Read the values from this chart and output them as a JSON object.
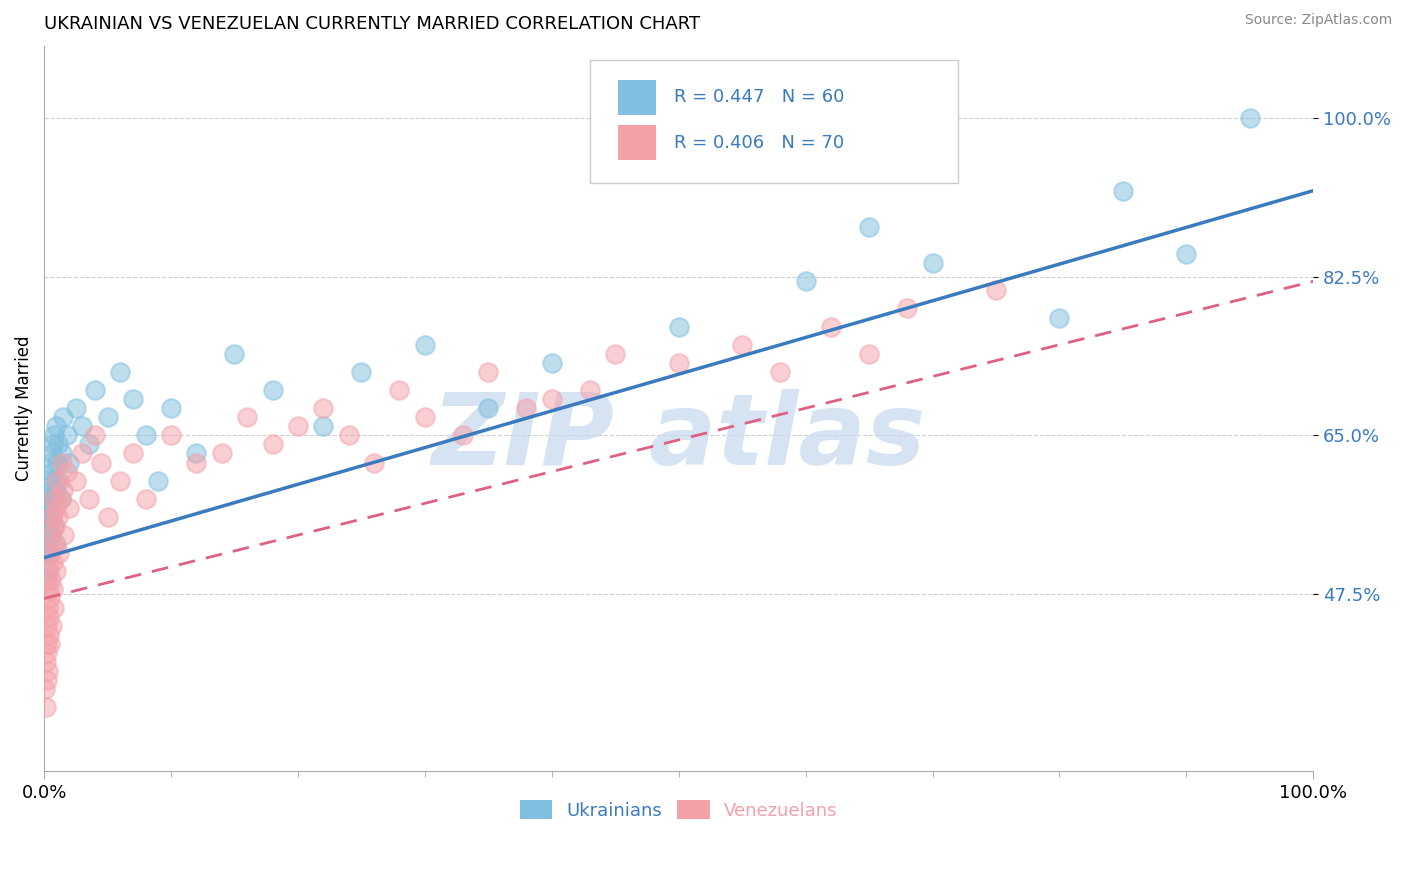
{
  "title": "UKRAINIAN VS VENEZUELAN CURRENTLY MARRIED CORRELATION CHART",
  "source": "Source: ZipAtlas.com",
  "xlabel_ukrainians": "Ukrainians",
  "xlabel_venezuelans": "Venezuelans",
  "ylabel": "Currently Married",
  "xlim": [
    0,
    100
  ],
  "ylim": [
    28,
    108
  ],
  "yticks": [
    47.5,
    65.0,
    82.5,
    100.0
  ],
  "xticks": [
    0,
    100
  ],
  "xtick_labels": [
    "0.0%",
    "100.0%"
  ],
  "ytick_labels": [
    "47.5%",
    "65.0%",
    "82.5%",
    "100.0%"
  ],
  "r_ukrainian": 0.447,
  "n_ukrainian": 60,
  "r_venezuelan": 0.406,
  "n_venezuelan": 70,
  "color_ukrainian": "#7fbfdf",
  "color_venezuelan": "#f4a0a8",
  "color_line_ukrainian": "#3a7abf",
  "color_line_venezuelan": "#e06080",
  "watermark_color": "#c5d8ee",
  "background_color": "#ffffff",
  "grid_color": "#d0d0d0",
  "ukrainian_x": [
    0.1,
    0.15,
    0.2,
    0.2,
    0.25,
    0.3,
    0.3,
    0.35,
    0.4,
    0.4,
    0.45,
    0.5,
    0.5,
    0.55,
    0.6,
    0.6,
    0.65,
    0.7,
    0.7,
    0.75,
    0.8,
    0.8,
    0.85,
    0.9,
    0.9,
    0.95,
    1.0,
    1.1,
    1.2,
    1.3,
    1.4,
    1.5,
    1.8,
    2.0,
    2.5,
    3.0,
    3.5,
    4.0,
    5.0,
    6.0,
    7.0,
    8.0,
    9.0,
    10.0,
    12.0,
    15.0,
    18.0,
    22.0,
    25.0,
    30.0,
    35.0,
    40.0,
    50.0,
    60.0,
    65.0,
    70.0,
    80.0,
    85.0,
    90.0,
    95.0
  ],
  "ukrainian_y": [
    52,
    54,
    50,
    56,
    49,
    53,
    58,
    55,
    57,
    60,
    52,
    54,
    62,
    59,
    56,
    63,
    61,
    57,
    64,
    55,
    58,
    65,
    60,
    66,
    53,
    59,
    62,
    64,
    60,
    58,
    63,
    67,
    65,
    62,
    68,
    66,
    64,
    70,
    67,
    72,
    69,
    65,
    60,
    68,
    63,
    74,
    70,
    66,
    72,
    75,
    68,
    73,
    77,
    82,
    88,
    84,
    78,
    92,
    85,
    100
  ],
  "venezuelan_x": [
    0.1,
    0.15,
    0.15,
    0.2,
    0.2,
    0.25,
    0.25,
    0.3,
    0.3,
    0.35,
    0.35,
    0.4,
    0.4,
    0.45,
    0.5,
    0.5,
    0.55,
    0.6,
    0.6,
    0.65,
    0.7,
    0.7,
    0.75,
    0.8,
    0.8,
    0.85,
    0.9,
    0.9,
    1.0,
    1.1,
    1.2,
    1.3,
    1.4,
    1.5,
    1.6,
    1.8,
    2.0,
    2.5,
    3.0,
    3.5,
    4.0,
    4.5,
    5.0,
    6.0,
    7.0,
    8.0,
    10.0,
    12.0,
    14.0,
    16.0,
    18.0,
    20.0,
    22.0,
    24.0,
    26.0,
    28.0,
    30.0,
    33.0,
    35.0,
    38.0,
    40.0,
    43.0,
    45.0,
    50.0,
    55.0,
    58.0,
    62.0,
    65.0,
    68.0,
    75.0
  ],
  "venezuelan_y": [
    37,
    40,
    35,
    42,
    38,
    44,
    41,
    46,
    39,
    48,
    43,
    50,
    45,
    42,
    52,
    47,
    49,
    54,
    44,
    56,
    51,
    48,
    58,
    53,
    46,
    55,
    57,
    50,
    60,
    56,
    52,
    58,
    62,
    59,
    54,
    61,
    57,
    60,
    63,
    58,
    65,
    62,
    56,
    60,
    63,
    58,
    65,
    62,
    63,
    67,
    64,
    66,
    68,
    65,
    62,
    70,
    67,
    65,
    72,
    68,
    69,
    70,
    74,
    73,
    75,
    72,
    77,
    74,
    79,
    81
  ],
  "line_ukrainian_x0": 0,
  "line_ukrainian_y0": 51.5,
  "line_ukrainian_x1": 100,
  "line_ukrainian_y1": 92.0,
  "line_venezuelan_x0": 0,
  "line_venezuelan_y0": 47.0,
  "line_venezuelan_x1": 100,
  "line_venezuelan_y1": 82.0
}
